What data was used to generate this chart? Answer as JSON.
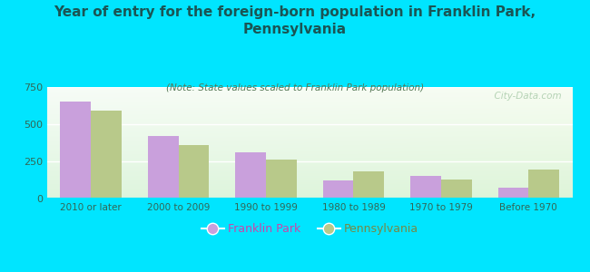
{
  "title": "Year of entry for the foreign-born population in Franklin Park,\nPennsylvania",
  "subtitle": "(Note: State values scaled to Franklin Park population)",
  "categories": [
    "2010 or later",
    "2000 to 2009",
    "1990 to 1999",
    "1980 to 1989",
    "1970 to 1979",
    "Before 1970"
  ],
  "franklin_park": [
    650,
    420,
    310,
    120,
    150,
    75
  ],
  "pennsylvania": [
    590,
    360,
    265,
    180,
    130,
    195
  ],
  "fp_color": "#c9a0dc",
  "pa_color": "#b8c98a",
  "background_color": "#00e5ff",
  "title_fontsize": 11,
  "subtitle_fontsize": 7.5,
  "watermark": "  City-Data.com",
  "ylim": [
    0,
    750
  ],
  "yticks": [
    0,
    250,
    500,
    750
  ],
  "bar_width": 0.35,
  "legend_fp": "Franklin Park",
  "legend_pa": "Pennsylvania"
}
